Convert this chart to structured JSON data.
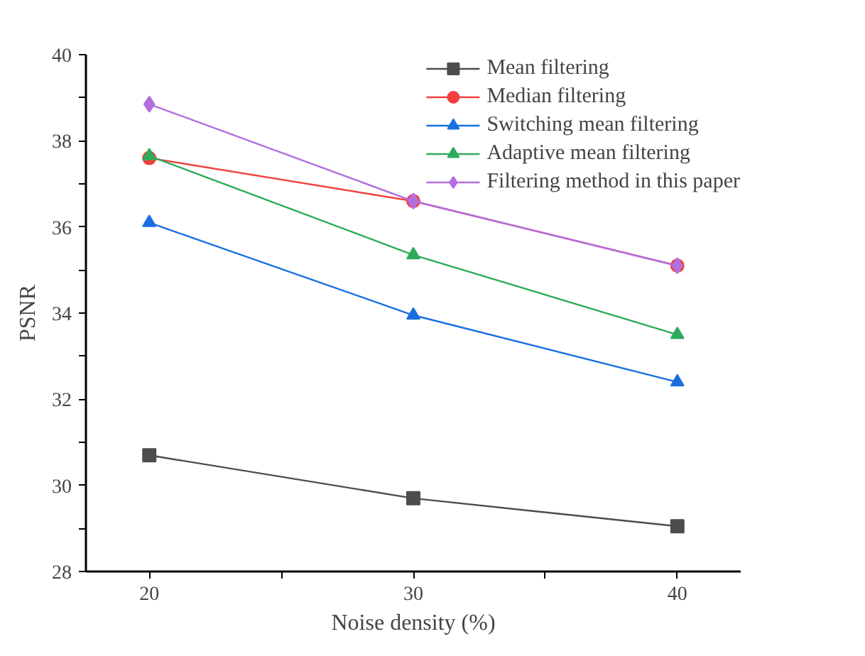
{
  "chart_data": {
    "type": "line",
    "xlabel": "Noise density (%)",
    "ylabel": "PSNR",
    "x": [
      20,
      30,
      40
    ],
    "xlim": [
      17.6,
      42.4
    ],
    "ylim": [
      28,
      40
    ],
    "xticks": [
      20,
      {
        "value": 25,
        "label": null
      },
      30,
      {
        "value": 35,
        "label": null
      },
      40
    ],
    "yticks": [
      28,
      {
        "value": 29,
        "label": null
      },
      30,
      {
        "value": 31,
        "label": null
      },
      32,
      {
        "value": 33,
        "label": null
      },
      34,
      {
        "value": 35,
        "label": null
      },
      36,
      {
        "value": 37,
        "label": null
      },
      38,
      {
        "value": 39,
        "label": null
      },
      40
    ],
    "grid": false,
    "legend": "top right",
    "line_style": "solid",
    "series": [
      {
        "name": "Mean filtering",
        "color": "#4d4d4d",
        "marker": "square",
        "values": [
          30.7,
          29.7,
          29.05
        ]
      },
      {
        "name": "Median filtering",
        "color": "#f0413e",
        "marker": "circle",
        "values": [
          37.6,
          36.6,
          35.1
        ]
      },
      {
        "name": "Switching mean filtering",
        "color": "#1a6fe0",
        "marker": "triangle",
        "values": [
          36.1,
          33.95,
          32.4
        ]
      },
      {
        "name": "Adaptive mean filtering",
        "color": "#2eaa5c",
        "marker": "triangle",
        "values": [
          37.65,
          35.35,
          33.5
        ]
      },
      {
        "name": "Filtering method in this paper",
        "color": "#b36ee0",
        "marker": "diamond",
        "values": [
          38.85,
          36.6,
          35.1
        ]
      }
    ]
  }
}
